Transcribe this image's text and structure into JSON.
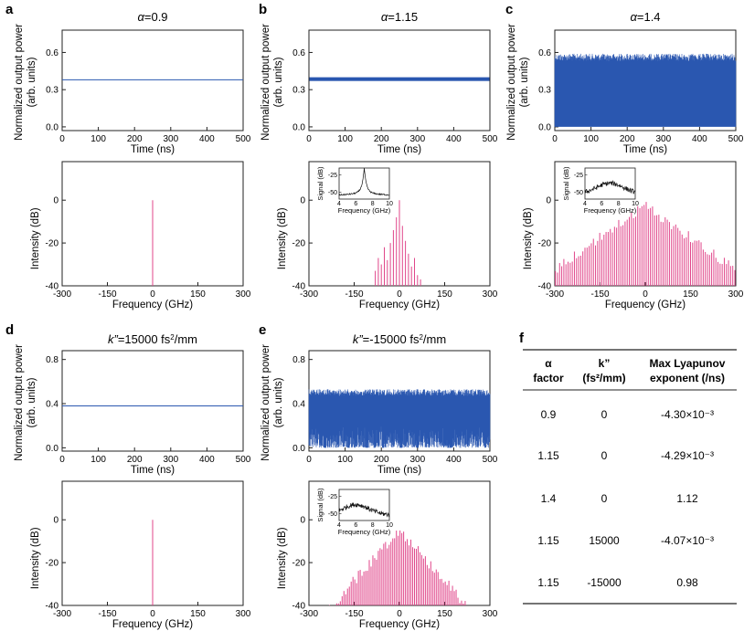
{
  "panel_labels": [
    "a",
    "b",
    "c",
    "d",
    "e",
    "f"
  ],
  "time_axis": {
    "xlabel": "Time (ns)",
    "ylabel1": "Normalized output power",
    "ylabel2": "(arb. units)"
  },
  "freq_axis": {
    "xlabel": "Frequency (GHz)",
    "ylabel": "Intensity (dB)"
  },
  "inset_axis": {
    "xlabel": "Frequency (GHz)",
    "ylabel": "Signal (dB)"
  },
  "titles": {
    "a": {
      "greek": "α",
      "rest": "=0.9"
    },
    "b": {
      "greek": "α",
      "rest": "=1.15"
    },
    "c": {
      "greek": "α",
      "rest": "=1.4"
    },
    "d": {
      "kvar": "k”",
      "rest": "=15000 fs",
      "sup": "2",
      "unit": "/mm"
    },
    "e": {
      "kvar": "k”",
      "rest": "=-15000 fs",
      "sup": "2",
      "unit": "/mm"
    }
  },
  "chart_data": [
    {
      "id": "a-time",
      "type": "line",
      "title": "α=0.9",
      "xlabel": "Time (ns)",
      "ylabel": "Normalized output power (arb. units)",
      "xlim": [
        0,
        500
      ],
      "xticks": [
        0,
        100,
        200,
        300,
        400,
        500
      ],
      "ylim": [
        -0.03,
        0.78
      ],
      "yticks": [
        0.0,
        0.3,
        0.6
      ],
      "ytick_labels": [
        "0.0",
        "0.3",
        "0.6"
      ],
      "series": [
        {
          "name": "power",
          "kind": "constant",
          "value": 0.38,
          "color": "#2a57b0"
        }
      ]
    },
    {
      "id": "b-time",
      "type": "line",
      "title": "α=1.15",
      "xlabel": "Time (ns)",
      "ylabel": "Normalized output power (arb. units)",
      "xlim": [
        0,
        500
      ],
      "xticks": [
        0,
        100,
        200,
        300,
        400,
        500
      ],
      "ylim": [
        -0.03,
        0.78
      ],
      "yticks": [
        0.0,
        0.3,
        0.6
      ],
      "ytick_labels": [
        "0.0",
        "0.3",
        "0.6"
      ],
      "series": [
        {
          "name": "power",
          "kind": "band",
          "min": 0.37,
          "max": 0.4,
          "color": "#2a57b0"
        }
      ]
    },
    {
      "id": "c-time",
      "type": "line",
      "title": "α=1.4",
      "xlabel": "Time (ns)",
      "ylabel": "Normalized output power (arb. units)",
      "xlim": [
        0,
        500
      ],
      "xticks": [
        0,
        100,
        200,
        300,
        400,
        500
      ],
      "ylim": [
        -0.03,
        0.78
      ],
      "yticks": [
        0.0,
        0.3,
        0.6
      ],
      "ytick_labels": [
        "0.0",
        "0.3",
        "0.6"
      ],
      "series": [
        {
          "name": "power",
          "kind": "chaotic",
          "min": 0.0,
          "max": 0.59,
          "color": "#2a57b0"
        }
      ]
    },
    {
      "id": "d-time",
      "type": "line",
      "title": "k”=15000 fs2/mm",
      "xlabel": "Time (ns)",
      "ylabel": "Normalized output power (arb. units)",
      "xlim": [
        0,
        500
      ],
      "xticks": [
        0,
        100,
        200,
        300,
        400,
        500
      ],
      "ylim": [
        -0.03,
        0.88
      ],
      "yticks": [
        0.0,
        0.4,
        0.8
      ],
      "ytick_labels": [
        "0.0",
        "0.4",
        "0.8"
      ],
      "series": [
        {
          "name": "power",
          "kind": "constant",
          "value": 0.38,
          "color": "#2a57b0"
        }
      ]
    },
    {
      "id": "e-time",
      "type": "line",
      "title": "k”=-15000 fs2/mm",
      "xlabel": "Time (ns)",
      "ylabel": "Normalized output power (arb. units)",
      "xlim": [
        0,
        500
      ],
      "xticks": [
        0,
        100,
        200,
        300,
        400,
        500
      ],
      "ylim": [
        -0.03,
        0.88
      ],
      "yticks": [
        0.0,
        0.4,
        0.8
      ],
      "ytick_labels": [
        "0.0",
        "0.4",
        "0.8"
      ],
      "series": [
        {
          "name": "power",
          "kind": "chaotic",
          "min": 0.0,
          "max": 0.53,
          "base": 0.2,
          "dropouts_ns": [
            45,
            110,
            160,
            205,
            255,
            300,
            385,
            392
          ],
          "color": "#2a57b0"
        }
      ]
    },
    {
      "id": "a-freq",
      "type": "bar",
      "xlabel": "Frequency (GHz)",
      "ylabel": "Intensity (dB)",
      "xlim": [
        -300,
        300
      ],
      "xticks": [
        -300,
        -150,
        0,
        150,
        300
      ],
      "ylim": [
        -40,
        18
      ],
      "yticks": [
        -40,
        -20,
        0
      ],
      "lines": [
        {
          "f": 0,
          "db": 0
        }
      ],
      "color": "#e0468a"
    },
    {
      "id": "b-freq",
      "type": "bar",
      "xlabel": "Frequency (GHz)",
      "ylabel": "Intensity (dB)",
      "xlim": [
        -300,
        300
      ],
      "xticks": [
        -300,
        -150,
        0,
        150,
        300
      ],
      "ylim": [
        -40,
        18
      ],
      "yticks": [
        -40,
        -20,
        0
      ],
      "lines": [
        {
          "f": -80,
          "db": -33
        },
        {
          "f": -70,
          "db": -27
        },
        {
          "f": -60,
          "db": -30
        },
        {
          "f": -50,
          "db": -22
        },
        {
          "f": -40,
          "db": -28
        },
        {
          "f": -30,
          "db": -20
        },
        {
          "f": -20,
          "db": -14
        },
        {
          "f": -10,
          "db": -8
        },
        {
          "f": 0,
          "db": 0
        },
        {
          "f": 10,
          "db": -12
        },
        {
          "f": 20,
          "db": -19
        },
        {
          "f": 30,
          "db": -25
        },
        {
          "f": 40,
          "db": -31
        },
        {
          "f": 50,
          "db": -27
        },
        {
          "f": 60,
          "db": -35
        },
        {
          "f": 70,
          "db": -37
        }
      ],
      "color": "#e0468a",
      "inset": {
        "xlabel": "Frequency (GHz)",
        "ylabel": "Signal (dB)",
        "xlim": [
          4,
          10
        ],
        "xticks": [
          4,
          6,
          8,
          10
        ],
        "ylim": [
          -60,
          -15
        ],
        "yticks": [
          -25,
          -50
        ],
        "shape": "narrow-peak",
        "peak_ghz": 7
      }
    },
    {
      "id": "c-freq",
      "type": "bar",
      "xlabel": "Frequency (GHz)",
      "ylabel": "Intensity (dB)",
      "xlim": [
        -300,
        300
      ],
      "xticks": [
        -300,
        -150,
        0,
        150,
        300
      ],
      "ylim": [
        -40,
        18
      ],
      "yticks": [
        -40,
        -20,
        0
      ],
      "envelope": {
        "center": 0,
        "peak_db": 0,
        "slope_db_per_ghz": 0.1,
        "spacing_ghz": 7
      },
      "color": "#e0468a",
      "inset": {
        "xlabel": "Frequency (GHz)",
        "ylabel": "Signal (dB)",
        "xlim": [
          4,
          10
        ],
        "xticks": [
          4,
          6,
          8,
          10
        ],
        "ylim": [
          -60,
          -15
        ],
        "yticks": [
          -25,
          -50
        ],
        "shape": "broad-hump",
        "peak_ghz": 7
      }
    },
    {
      "id": "d-freq",
      "type": "bar",
      "xlabel": "Frequency (GHz)",
      "ylabel": "Intensity (dB)",
      "xlim": [
        -300,
        300
      ],
      "xticks": [
        -300,
        -150,
        0,
        150,
        300
      ],
      "ylim": [
        -40,
        18
      ],
      "yticks": [
        -40,
        -20,
        0
      ],
      "lines": [
        {
          "f": 0,
          "db": 0
        }
      ],
      "color": "#e0468a"
    },
    {
      "id": "e-freq",
      "type": "bar",
      "xlabel": "Frequency (GHz)",
      "ylabel": "Intensity (dB)",
      "xlim": [
        -300,
        300
      ],
      "xticks": [
        -300,
        -150,
        0,
        150,
        300
      ],
      "ylim": [
        -40,
        18
      ],
      "yticks": [
        -40,
        -20,
        0
      ],
      "envelope": {
        "center": 0,
        "peak_db": -2,
        "slope_db_per_ghz": 0.16,
        "spacing_ghz": 6
      },
      "color": "#e0468a",
      "inset": {
        "xlabel": "Frequency (GHz)",
        "ylabel": "Signal (dB)",
        "xlim": [
          4,
          10
        ],
        "xticks": [
          4,
          6,
          8,
          10
        ],
        "ylim": [
          -60,
          -15
        ],
        "yticks": [
          -25,
          -50
        ],
        "shape": "broad-hump",
        "peak_ghz": 6
      }
    }
  ],
  "table": {
    "headers": [
      [
        "α",
        "factor"
      ],
      [
        "k”",
        "(fs²/mm)"
      ],
      [
        "Max Lyapunov",
        "exponent (/ns)"
      ]
    ],
    "rows": [
      [
        "0.9",
        "0",
        "-4.30×10⁻³"
      ],
      [
        "1.15",
        "0",
        "-4.29×10⁻³"
      ],
      [
        "1.4",
        "0",
        "1.12"
      ],
      [
        "1.15",
        "15000",
        "-4.07×10⁻³"
      ],
      [
        "1.15",
        "-15000",
        "0.98"
      ]
    ]
  }
}
